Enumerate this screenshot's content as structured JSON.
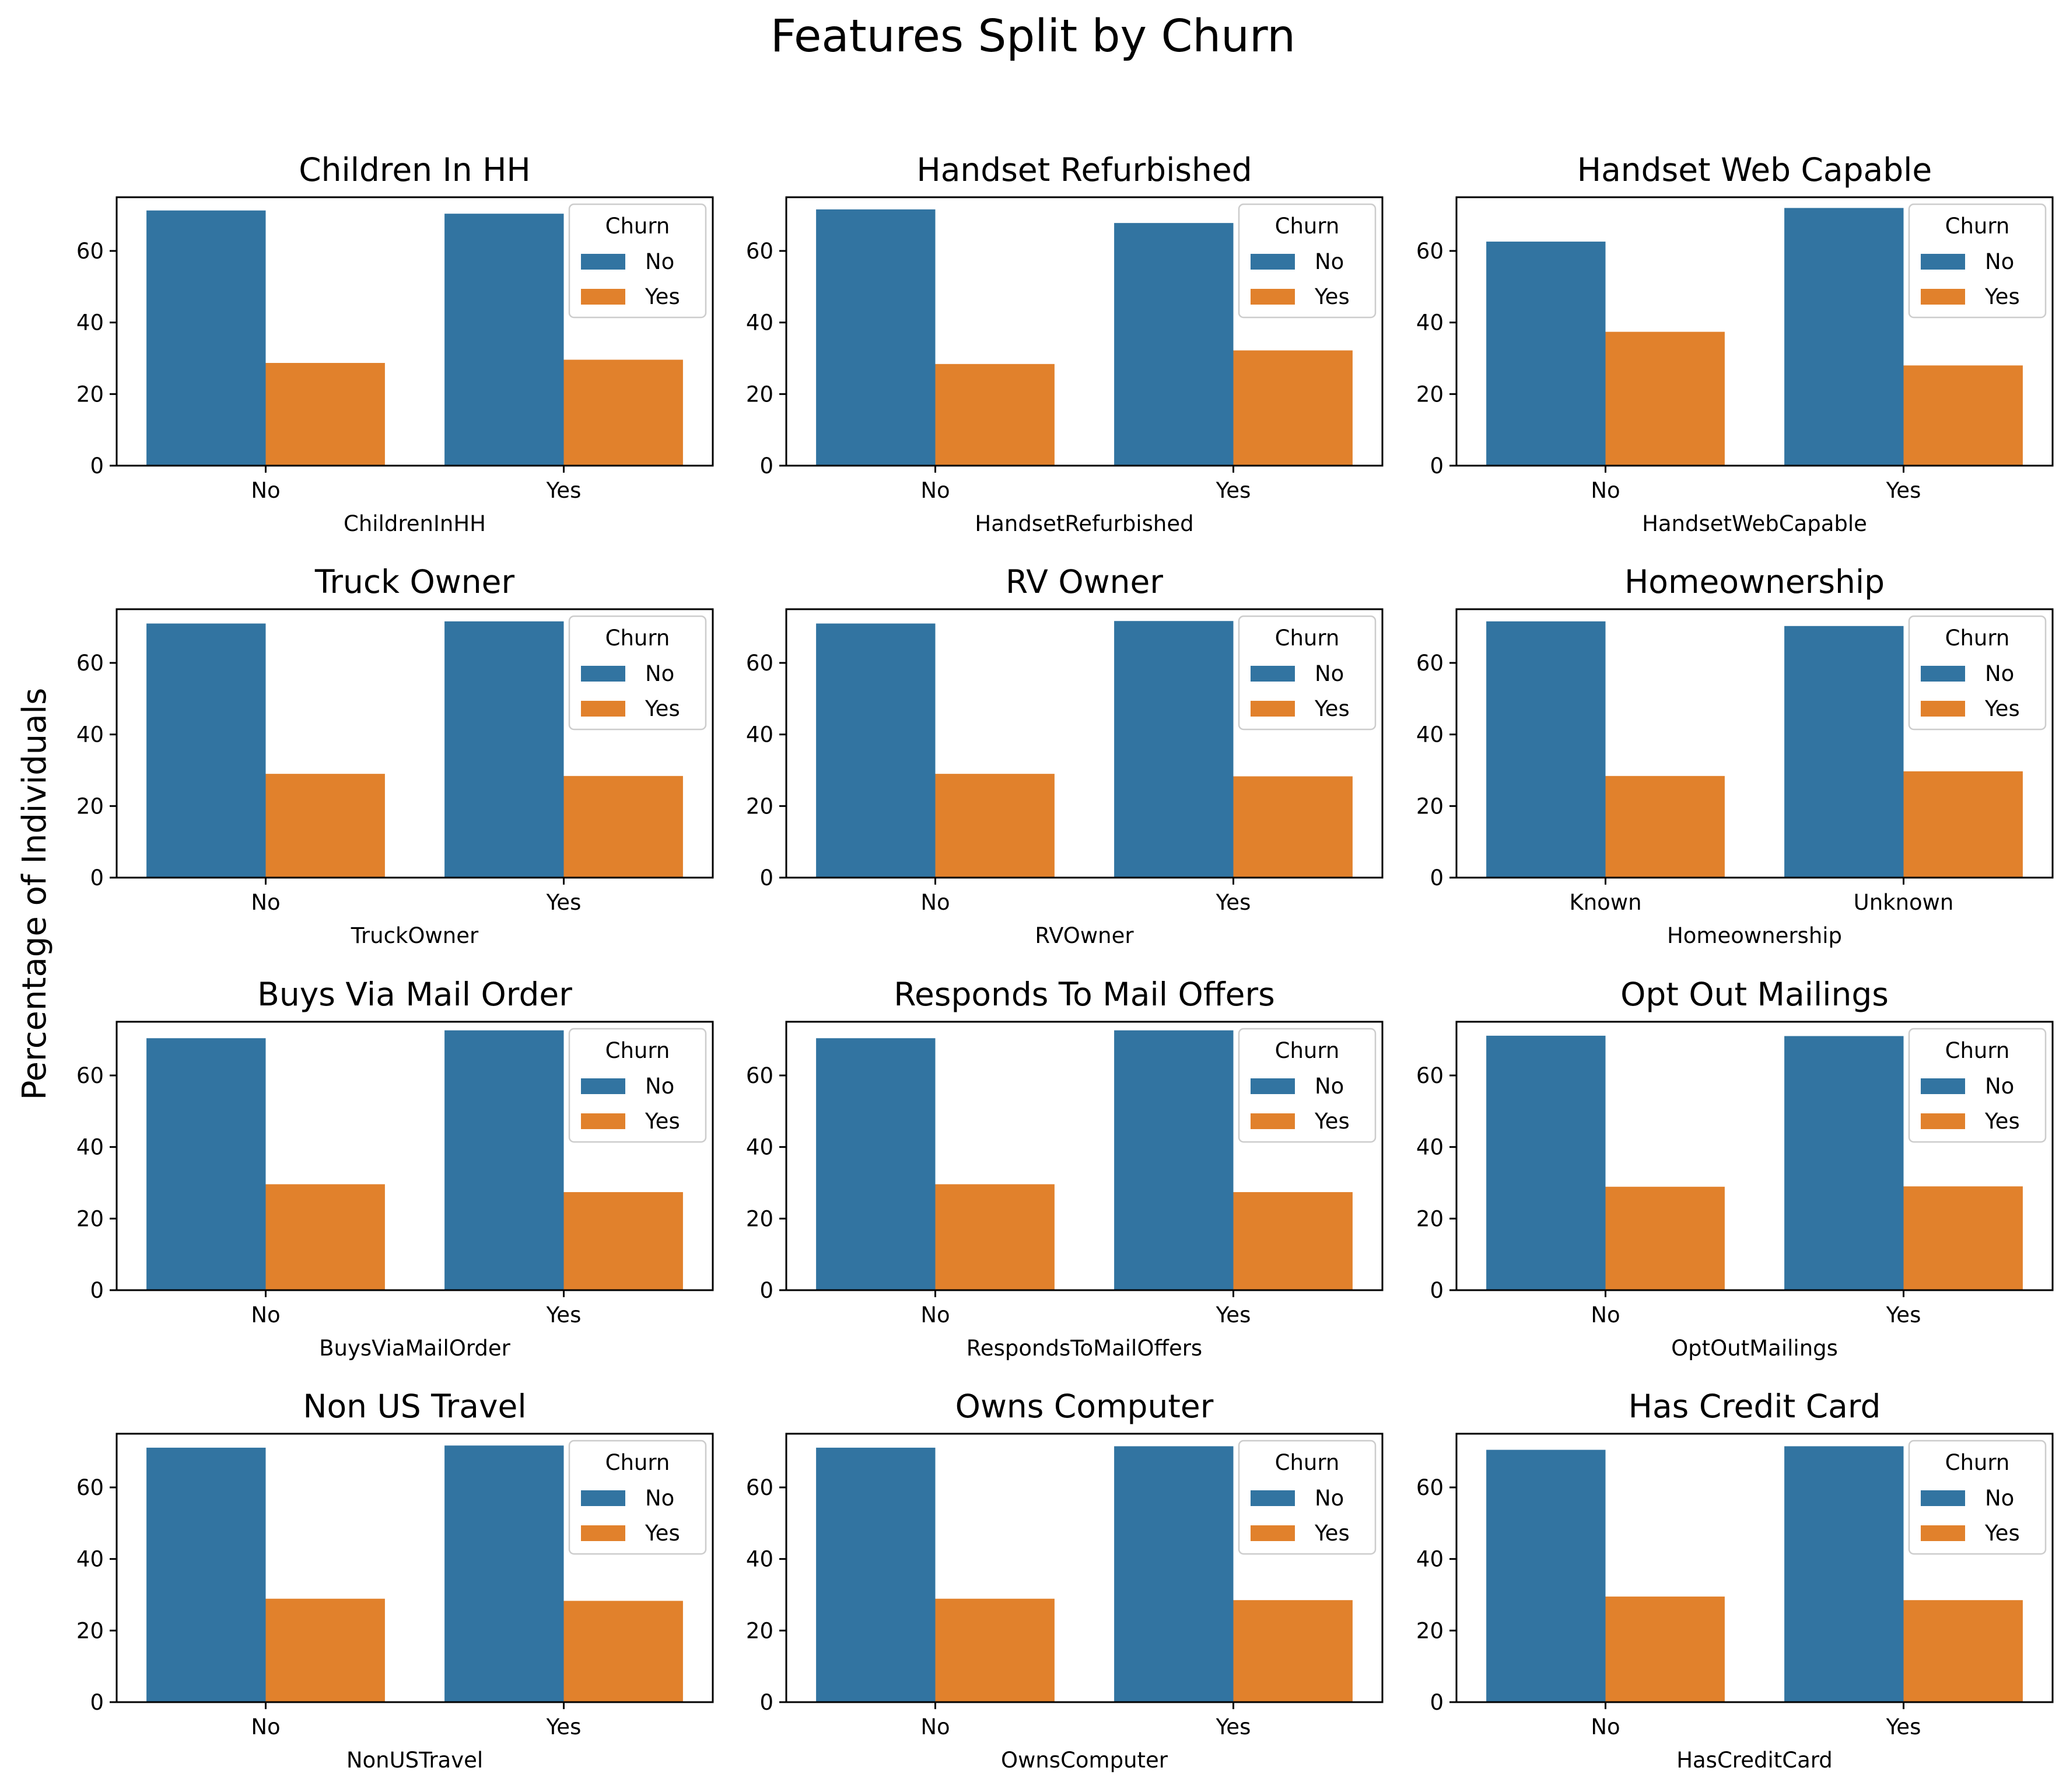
{
  "chart_data": {
    "title": "Features Split by Churn",
    "ylabel": "Percentage of Individuals",
    "type": "bar",
    "legend": {
      "title": "Churn",
      "placement": "top-right",
      "entries": [
        "No",
        "Yes"
      ]
    },
    "colors": {
      "No": "#3274a1",
      "Yes": "#e1812c"
    },
    "ylim": [
      0,
      75
    ],
    "yticks": [
      0,
      20,
      40,
      60
    ],
    "panels": [
      {
        "title": "Children In HH",
        "xlabel": "ChildrenInHH",
        "categories": [
          "No",
          "Yes"
        ],
        "series": [
          {
            "name": "No",
            "values": [
              71.3,
              70.4
            ]
          },
          {
            "name": "Yes",
            "values": [
              28.7,
              29.6
            ]
          }
        ]
      },
      {
        "title": "Handset Refurbished",
        "xlabel": "HandsetRefurbished",
        "categories": [
          "No",
          "Yes"
        ],
        "series": [
          {
            "name": "No",
            "values": [
              71.6,
              67.8
            ]
          },
          {
            "name": "Yes",
            "values": [
              28.4,
              32.2
            ]
          }
        ]
      },
      {
        "title": "Handset Web Capable",
        "xlabel": "HandsetWebCapable",
        "categories": [
          "No",
          "Yes"
        ],
        "series": [
          {
            "name": "No",
            "values": [
              62.6,
              72.0
            ]
          },
          {
            "name": "Yes",
            "values": [
              37.4,
              28.0
            ]
          }
        ]
      },
      {
        "title": "Truck Owner",
        "xlabel": "TruckOwner",
        "categories": [
          "No",
          "Yes"
        ],
        "series": [
          {
            "name": "No",
            "values": [
              71.0,
              71.6
            ]
          },
          {
            "name": "Yes",
            "values": [
              29.0,
              28.4
            ]
          }
        ]
      },
      {
        "title": "RV Owner",
        "xlabel": "RVOwner",
        "categories": [
          "No",
          "Yes"
        ],
        "series": [
          {
            "name": "No",
            "values": [
              71.0,
              71.7
            ]
          },
          {
            "name": "Yes",
            "values": [
              29.0,
              28.3
            ]
          }
        ]
      },
      {
        "title": "Homeownership",
        "xlabel": "Homeownership",
        "categories": [
          "Known",
          "Unknown"
        ],
        "series": [
          {
            "name": "No",
            "values": [
              71.6,
              70.3
            ]
          },
          {
            "name": "Yes",
            "values": [
              28.4,
              29.7
            ]
          }
        ]
      },
      {
        "title": "Buys Via Mail Order",
        "xlabel": "BuysViaMailOrder",
        "categories": [
          "No",
          "Yes"
        ],
        "series": [
          {
            "name": "No",
            "values": [
              70.4,
              72.6
            ]
          },
          {
            "name": "Yes",
            "values": [
              29.6,
              27.4
            ]
          }
        ]
      },
      {
        "title": "Responds To Mail Offers",
        "xlabel": "RespondsToMailOffers",
        "categories": [
          "No",
          "Yes"
        ],
        "series": [
          {
            "name": "No",
            "values": [
              70.4,
              72.6
            ]
          },
          {
            "name": "Yes",
            "values": [
              29.6,
              27.4
            ]
          }
        ]
      },
      {
        "title": "Opt Out Mailings",
        "xlabel": "OptOutMailings",
        "categories": [
          "No",
          "Yes"
        ],
        "series": [
          {
            "name": "No",
            "values": [
              71.1,
              71.0
            ]
          },
          {
            "name": "Yes",
            "values": [
              28.9,
              29.0
            ]
          }
        ]
      },
      {
        "title": "Non US Travel",
        "xlabel": "NonUSTravel",
        "categories": [
          "No",
          "Yes"
        ],
        "series": [
          {
            "name": "No",
            "values": [
              71.1,
              71.7
            ]
          },
          {
            "name": "Yes",
            "values": [
              28.9,
              28.3
            ]
          }
        ]
      },
      {
        "title": "Owns Computer",
        "xlabel": "OwnsComputer",
        "categories": [
          "No",
          "Yes"
        ],
        "series": [
          {
            "name": "No",
            "values": [
              71.1,
              71.5
            ]
          },
          {
            "name": "Yes",
            "values": [
              28.9,
              28.5
            ]
          }
        ]
      },
      {
        "title": "Has Credit Card",
        "xlabel": "HasCreditCard",
        "categories": [
          "No",
          "Yes"
        ],
        "series": [
          {
            "name": "No",
            "values": [
              70.5,
              71.5
            ]
          },
          {
            "name": "Yes",
            "values": [
              29.5,
              28.5
            ]
          }
        ]
      }
    ]
  }
}
